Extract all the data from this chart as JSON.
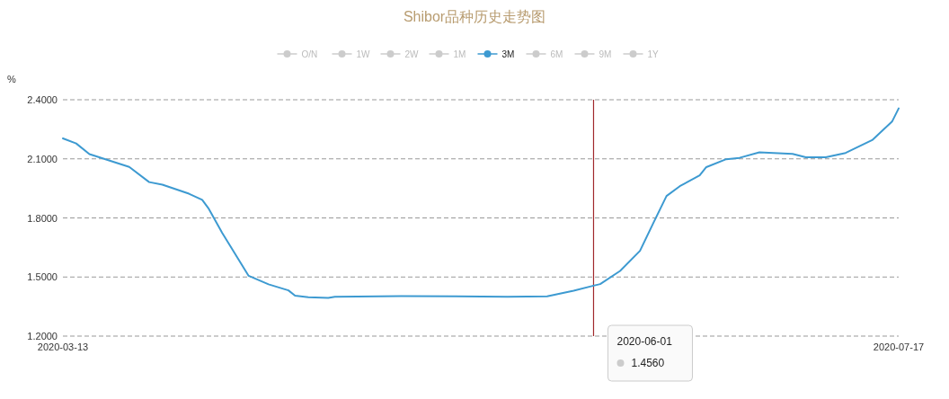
{
  "chart_data": {
    "type": "line",
    "title": "Shibor品种历史走势图",
    "ylabel": "%",
    "legend": "top",
    "grid": "y",
    "x": [
      "2020-03-13",
      "2020-03-15",
      "2020-03-17",
      "2020-03-23",
      "2020-03-26",
      "2020-03-28",
      "2020-04-01",
      "2020-04-03",
      "2020-04-04",
      "2020-04-06",
      "2020-04-09",
      "2020-04-10",
      "2020-04-13",
      "2020-04-16",
      "2020-04-17",
      "2020-04-19",
      "2020-04-22",
      "2020-04-23",
      "2020-05-03",
      "2020-05-19",
      "2020-05-25",
      "2020-05-29",
      "2020-06-01",
      "2020-06-02",
      "2020-06-05",
      "2020-06-08",
      "2020-06-10",
      "2020-06-12",
      "2020-06-14",
      "2020-06-17",
      "2020-06-18",
      "2020-06-21",
      "2020-06-23",
      "2020-06-26",
      "2020-07-01",
      "2020-07-03",
      "2020-07-06",
      "2020-07-09",
      "2020-07-13",
      "2020-07-16",
      "2020-07-17"
    ],
    "series": [
      {
        "name": "O/N",
        "color": "#cccccc",
        "values": [
          null,
          null,
          null,
          null,
          null,
          null,
          null,
          null,
          null,
          null,
          null,
          null,
          null,
          null,
          null,
          null,
          null,
          null,
          null,
          null,
          null,
          null,
          null,
          null,
          null,
          null,
          null,
          null,
          null,
          null,
          null,
          null,
          null,
          null,
          null,
          null,
          null,
          null,
          null,
          null,
          null
        ]
      },
      {
        "name": "1W",
        "color": "#cccccc",
        "values": [
          null,
          null,
          null,
          null,
          null,
          null,
          null,
          null,
          null,
          null,
          null,
          null,
          null,
          null,
          null,
          null,
          null,
          null,
          null,
          null,
          null,
          null,
          null,
          null,
          null,
          null,
          null,
          null,
          null,
          null,
          null,
          null,
          null,
          null,
          null,
          null,
          null,
          null,
          null,
          null,
          null
        ]
      },
      {
        "name": "2W",
        "color": "#cccccc",
        "values": [
          null,
          null,
          null,
          null,
          null,
          null,
          null,
          null,
          null,
          null,
          null,
          null,
          null,
          null,
          null,
          null,
          null,
          null,
          null,
          null,
          null,
          null,
          null,
          null,
          null,
          null,
          null,
          null,
          null,
          null,
          null,
          null,
          null,
          null,
          null,
          null,
          null,
          null,
          null,
          null,
          null
        ]
      },
      {
        "name": "1M",
        "color": "#cccccc",
        "values": [
          null,
          null,
          null,
          null,
          null,
          null,
          null,
          null,
          null,
          null,
          null,
          null,
          null,
          null,
          null,
          null,
          null,
          null,
          null,
          null,
          null,
          null,
          null,
          null,
          null,
          null,
          null,
          null,
          null,
          null,
          null,
          null,
          null,
          null,
          null,
          null,
          null,
          null,
          null,
          null,
          null
        ]
      },
      {
        "name": "3M",
        "color": "#3d9ad1",
        "values": [
          2.204,
          2.178,
          2.124,
          2.059,
          1.982,
          1.969,
          1.923,
          1.892,
          1.846,
          1.725,
          1.56,
          1.506,
          1.463,
          1.432,
          1.405,
          1.397,
          1.394,
          1.4,
          1.403,
          1.4,
          1.402,
          1.43,
          1.456,
          1.464,
          1.531,
          1.633,
          1.773,
          1.911,
          1.961,
          2.016,
          2.058,
          2.098,
          2.105,
          2.133,
          2.125,
          2.108,
          2.108,
          2.13,
          2.195,
          2.289,
          2.356
        ]
      },
      {
        "name": "6M",
        "color": "#cccccc",
        "values": [
          null,
          null,
          null,
          null,
          null,
          null,
          null,
          null,
          null,
          null,
          null,
          null,
          null,
          null,
          null,
          null,
          null,
          null,
          null,
          null,
          null,
          null,
          null,
          null,
          null,
          null,
          null,
          null,
          null,
          null,
          null,
          null,
          null,
          null,
          null,
          null,
          null,
          null,
          null,
          null,
          null
        ]
      },
      {
        "name": "9M",
        "color": "#cccccc",
        "values": [
          null,
          null,
          null,
          null,
          null,
          null,
          null,
          null,
          null,
          null,
          null,
          null,
          null,
          null,
          null,
          null,
          null,
          null,
          null,
          null,
          null,
          null,
          null,
          null,
          null,
          null,
          null,
          null,
          null,
          null,
          null,
          null,
          null,
          null,
          null,
          null,
          null,
          null,
          null,
          null,
          null
        ]
      },
      {
        "name": "1Y",
        "color": "#cccccc",
        "values": [
          null,
          null,
          null,
          null,
          null,
          null,
          null,
          null,
          null,
          null,
          null,
          null,
          null,
          null,
          null,
          null,
          null,
          null,
          null,
          null,
          null,
          null,
          null,
          null,
          null,
          null,
          null,
          null,
          null,
          null,
          null,
          null,
          null,
          null,
          null,
          null,
          null,
          null,
          null,
          null,
          null
        ]
      }
    ],
    "xlim": [
      "2020-03-13",
      "2020-07-17"
    ],
    "xticks": [
      {
        "value": "2020-03-13",
        "label": "2020-03-13"
      },
      {
        "value": "2020-07-17",
        "label": "2020-07-17"
      }
    ],
    "ylim": [
      1.2,
      2.4
    ],
    "yticks": [
      {
        "value": 1.2,
        "label": "1.2000"
      },
      {
        "value": 1.5,
        "label": "1.5000"
      },
      {
        "value": 1.8,
        "label": "1.8000"
      },
      {
        "value": 2.1,
        "label": "2.1000"
      },
      {
        "value": 2.4,
        "label": "2.4000"
      }
    ],
    "ref_lines": [
      {
        "axis": "x",
        "value": "2020-06-01",
        "color": "#a0282d"
      }
    ],
    "annotations": [
      "2020-06-01",
      "1.4560"
    ]
  }
}
